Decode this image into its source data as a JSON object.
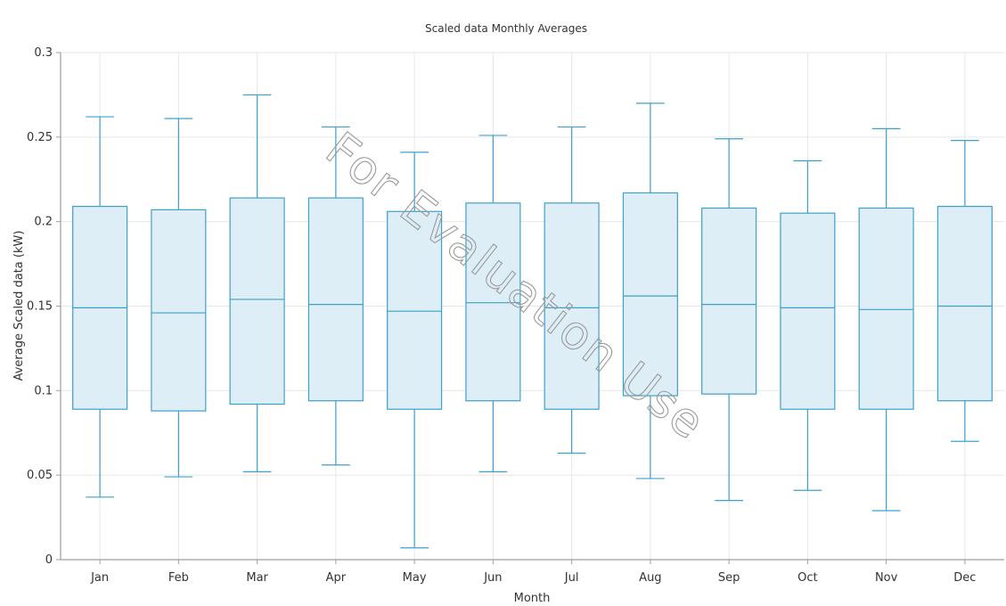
{
  "chart_data": {
    "type": "box",
    "title": "Scaled data Monthly Averages",
    "xlabel": "Month",
    "ylabel": "Average Scaled data (kW)",
    "ylim": [
      0,
      0.3
    ],
    "yticks": [
      "0",
      "0.05",
      "0.1",
      "0.15",
      "0.2",
      "0.25",
      "0.3"
    ],
    "grid": true,
    "categories": [
      "Jan",
      "Feb",
      "Mar",
      "Apr",
      "May",
      "Jun",
      "Jul",
      "Aug",
      "Sep",
      "Oct",
      "Nov",
      "Dec"
    ],
    "series": [
      {
        "boxes": [
          {
            "min": 0.037,
            "q1": 0.089,
            "median": 0.149,
            "q3": 0.209,
            "max": 0.262
          },
          {
            "min": 0.049,
            "q1": 0.088,
            "median": 0.146,
            "q3": 0.207,
            "max": 0.261
          },
          {
            "min": 0.052,
            "q1": 0.092,
            "median": 0.154,
            "q3": 0.214,
            "max": 0.275
          },
          {
            "min": 0.056,
            "q1": 0.094,
            "median": 0.151,
            "q3": 0.214,
            "max": 0.256
          },
          {
            "min": 0.007,
            "q1": 0.089,
            "median": 0.147,
            "q3": 0.206,
            "max": 0.241
          },
          {
            "min": 0.052,
            "q1": 0.094,
            "median": 0.152,
            "q3": 0.211,
            "max": 0.251
          },
          {
            "min": 0.063,
            "q1": 0.089,
            "median": 0.149,
            "q3": 0.211,
            "max": 0.256
          },
          {
            "min": 0.048,
            "q1": 0.097,
            "median": 0.156,
            "q3": 0.217,
            "max": 0.27
          },
          {
            "min": 0.035,
            "q1": 0.098,
            "median": 0.151,
            "q3": 0.208,
            "max": 0.249
          },
          {
            "min": 0.041,
            "q1": 0.089,
            "median": 0.149,
            "q3": 0.205,
            "max": 0.236
          },
          {
            "min": 0.029,
            "q1": 0.089,
            "median": 0.148,
            "q3": 0.208,
            "max": 0.255
          },
          {
            "min": 0.07,
            "q1": 0.094,
            "median": 0.15,
            "q3": 0.209,
            "max": 0.248
          }
        ]
      }
    ],
    "colors": {
      "box_fill": "#deeef7",
      "box_stroke": "#3ea0cc",
      "grid": "#e6e6e6",
      "axis": "#9e9e9e",
      "text": "#333333"
    },
    "watermark": "For Evaluation Use"
  }
}
